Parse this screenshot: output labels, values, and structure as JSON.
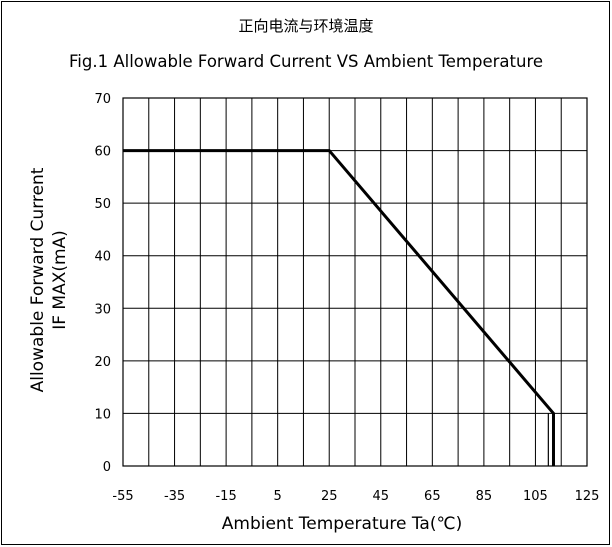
{
  "chart_data": {
    "type": "line",
    "title": "正向电流与环境温度",
    "subtitle": "Fig.1 Allowable Forward Current VS Ambient Temperature",
    "xlabel": "Ambient Temperature Ta(℃)",
    "ylabel_lines": [
      "Allowable Forward Current",
      "IF MAX(mA)"
    ],
    "xlim": [
      -55,
      125
    ],
    "ylim": [
      0,
      70
    ],
    "x_ticks": [
      -55,
      -35,
      -15,
      5,
      25,
      45,
      65,
      85,
      105,
      125
    ],
    "x_tick_labels": [
      "-55",
      "-35",
      "-15",
      "5",
      "25",
      "45",
      "65",
      "85",
      "105",
      "125"
    ],
    "y_ticks": [
      0,
      10,
      20,
      30,
      40,
      50,
      60,
      70
    ],
    "y_tick_labels": [
      "0",
      "10",
      "20",
      "30",
      "40",
      "50",
      "60",
      "70"
    ],
    "x_gridlines": [
      -55,
      -45,
      -35,
      -25,
      -15,
      -5,
      5,
      15,
      25,
      35,
      45,
      55,
      65,
      75,
      85,
      95,
      105,
      115,
      125
    ],
    "grid": true,
    "series": [
      {
        "x": [
          -55,
          25,
          112,
          112
        ],
        "y": [
          60,
          60,
          10,
          0
        ]
      }
    ],
    "extra_vertical_line": {
      "x": 110,
      "y": [
        0,
        10
      ]
    },
    "colors": {
      "line": "#000000",
      "grid": "#000000"
    }
  }
}
